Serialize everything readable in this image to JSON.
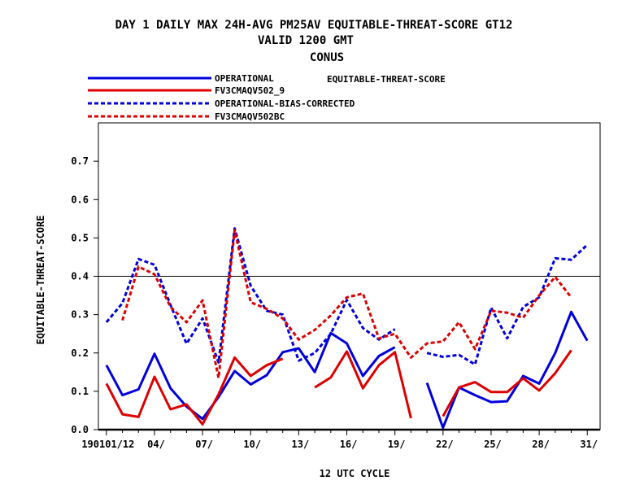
{
  "chart_data": {
    "type": "line",
    "title_lines": [
      "DAY 1 DAILY MAX   24H-AVG PM25AV EQUITABLE-THREAT-SCORE GT12",
      "VALID 1200 GMT",
      "CONUS"
    ],
    "xlabel": "12 UTC CYCLE",
    "ylabel": "EQUITABLE-THREAT-SCORE",
    "legend_note": "EQUITABLE-THREAT-SCORE",
    "xlim": [
      0.5,
      31.8
    ],
    "ylim": [
      0,
      0.8
    ],
    "yticks": [
      0.0,
      0.1,
      0.2,
      0.3,
      0.4,
      0.5,
      0.6,
      0.7
    ],
    "ytick_labels": [
      "0.0",
      "0.1",
      "0.2",
      "0.3",
      "0.4",
      "0.5",
      "0.6",
      "0.7"
    ],
    "xticks": [
      1,
      4,
      7,
      10,
      13,
      16,
      19,
      22,
      25,
      28,
      31
    ],
    "xtick_labels": [
      "190101/12",
      "04/",
      "07/",
      "10/",
      "13/",
      "16/",
      "19/",
      "22/",
      "25/",
      "28/",
      "31/"
    ],
    "reference_line": 0.4,
    "x": [
      1,
      2,
      3,
      4,
      5,
      6,
      7,
      8,
      9,
      10,
      11,
      12,
      13,
      14,
      15,
      16,
      17,
      18,
      19,
      20,
      21,
      22,
      23,
      24,
      25,
      26,
      27,
      28,
      29,
      30,
      31
    ],
    "series": [
      {
        "name": "OPERATIONAL",
        "color": "#0000dd",
        "dash": "solid",
        "values": [
          0.168,
          0.09,
          0.105,
          0.198,
          0.108,
          0.06,
          0.028,
          0.085,
          0.153,
          0.118,
          0.142,
          0.202,
          0.212,
          0.15,
          0.252,
          0.225,
          0.14,
          0.192,
          0.215,
          null,
          0.122,
          0.005,
          0.11,
          0.09,
          0.072,
          0.074,
          0.14,
          0.12,
          0.2,
          0.307,
          0.232
        ]
      },
      {
        "name": "FV3CMAQV502_9",
        "color": "#dd0000",
        "dash": "solid",
        "values": [
          0.12,
          0.04,
          0.033,
          0.138,
          0.053,
          0.066,
          0.014,
          0.092,
          0.188,
          0.14,
          0.168,
          0.185,
          null,
          0.11,
          0.136,
          0.204,
          0.108,
          0.168,
          0.202,
          0.03,
          null,
          0.035,
          0.11,
          0.124,
          0.098,
          0.098,
          0.134,
          0.102,
          0.147,
          0.207,
          null
        ]
      },
      {
        "name": "OPERATIONAL-BIAS-CORRECTED",
        "color": "#0000dd",
        "dash": "dashed",
        "values": [
          0.28,
          0.33,
          0.445,
          0.43,
          0.325,
          0.224,
          0.29,
          0.175,
          0.525,
          0.375,
          0.31,
          0.3,
          0.18,
          0.2,
          0.25,
          0.338,
          0.265,
          0.235,
          0.262,
          null,
          0.2,
          0.19,
          0.195,
          0.17,
          0.318,
          0.238,
          0.32,
          0.345,
          0.447,
          0.443,
          0.482
        ]
      },
      {
        "name": "FV3CMAQV502BC",
        "color": "#dd0000",
        "dash": "dashed",
        "values": [
          null,
          0.285,
          0.425,
          0.405,
          0.32,
          0.28,
          0.337,
          0.135,
          0.52,
          0.332,
          0.315,
          0.29,
          0.235,
          0.26,
          0.298,
          0.345,
          0.355,
          0.238,
          0.25,
          0.188,
          0.225,
          0.23,
          0.28,
          0.21,
          0.31,
          0.305,
          0.292,
          0.35,
          0.398,
          0.345,
          null
        ]
      }
    ]
  }
}
